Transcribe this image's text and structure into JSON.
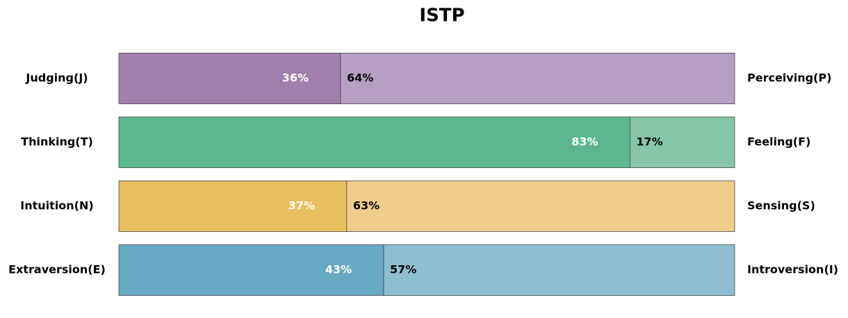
{
  "chart_data": {
    "type": "bar",
    "orientation": "horizontal",
    "stacked": true,
    "title": "ISTP",
    "xlim": [
      0,
      100
    ],
    "categories": [
      "Judging(J)",
      "Thinking(T)",
      "Intuition(N)",
      "Extraversion(E)"
    ],
    "right_categories": [
      "Perceiving(P)",
      "Feeling(F)",
      "Sensing(S)",
      "Introversion(I)"
    ],
    "series": [
      {
        "colors": [
          "#a07fac",
          "#5cb68f",
          "#e8be5f",
          "#67aac3"
        ],
        "values": [
          36,
          83,
          37,
          43
        ],
        "value_labels": [
          "36%",
          "83%",
          "37%",
          "43%"
        ]
      },
      {
        "colors": [
          "#b79fc3",
          "#86c7a9",
          "#efcd8b",
          "#8ebfd0"
        ],
        "values": [
          64,
          17,
          63,
          57
        ],
        "value_labels": [
          "64%",
          "17%",
          "63%",
          "57%"
        ]
      }
    ]
  }
}
